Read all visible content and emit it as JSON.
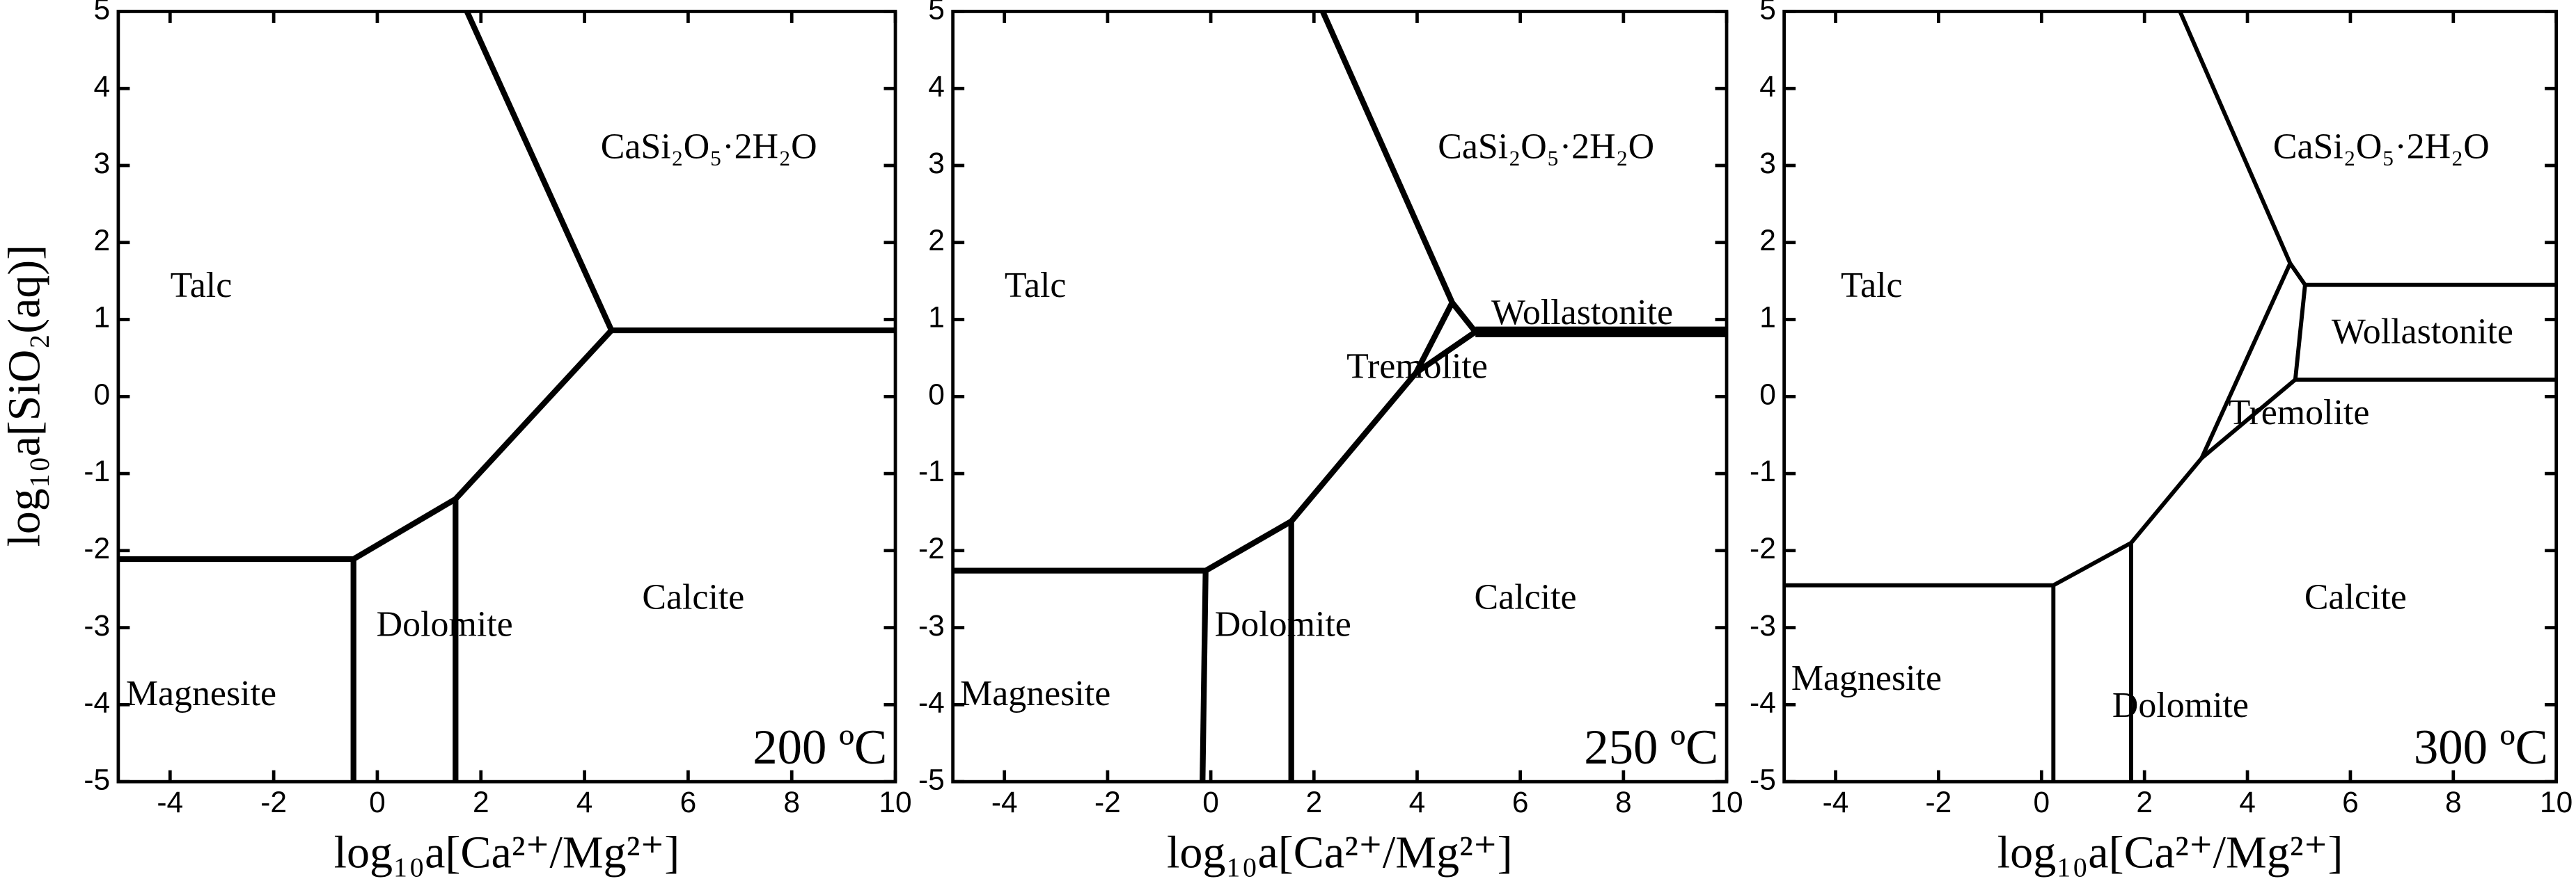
{
  "chart_data": [
    {
      "type": "line",
      "xlabel": "log₁₀a[Ca²⁺/Mg²⁺]",
      "ylabel": "log₁₀a[SiO₂(aq)]",
      "corner_label": "200 ºC",
      "xlim": [
        -5,
        10
      ],
      "ylim": [
        -5,
        5
      ],
      "xticks": [
        -4,
        -2,
        0,
        2,
        4,
        6,
        8,
        10
      ],
      "yticks": [
        -5,
        -4,
        -3,
        -2,
        -1,
        0,
        1,
        2,
        3,
        4,
        5
      ],
      "color": "#000000",
      "linewidth": 3.5,
      "annotations": [
        "Talc",
        "CaSi₂O₅·2H₂O",
        "Dolomite",
        "Calcite",
        "Magnesite"
      ],
      "boundaries": [
        {
          "x": [
            1.73,
            4.52,
            10
          ],
          "y": [
            5,
            0.86,
            0.86
          ]
        },
        {
          "x": [
            4.52,
            1.51,
            -0.46,
            -5
          ],
          "y": [
            0.86,
            -1.33,
            -2.11,
            -2.11
          ]
        },
        {
          "x": [
            -0.46,
            -0.46
          ],
          "y": [
            -2.11,
            -5
          ]
        },
        {
          "x": [
            1.51,
            1.51
          ],
          "y": [
            -1.33,
            -5
          ]
        }
      ]
    },
    {
      "type": "line",
      "xlabel": "log₁₀a[Ca²⁺/Mg²⁺]",
      "corner_label": "250 ºC",
      "xlim": [
        -5,
        10
      ],
      "ylim": [
        -5,
        5
      ],
      "xticks": [
        -4,
        -2,
        0,
        2,
        4,
        6,
        8,
        10
      ],
      "yticks": [
        -5,
        -4,
        -3,
        -2,
        -1,
        0,
        1,
        2,
        3,
        4,
        5
      ],
      "color": "#000000",
      "linewidth": 3.5,
      "annotations": [
        "Talc",
        "CaSi₂O₅·2H₂O",
        "Wollastonite",
        "Tremolite",
        "Dolomite",
        "Calcite",
        "Magnesite"
      ],
      "boundaries": [
        {
          "x": [
            2.17,
            4.68,
            5.13
          ],
          "y": [
            5,
            1.22,
            0.84
          ]
        },
        {
          "x": [
            5.13,
            10
          ],
          "y": [
            0.84,
            0.84
          ],
          "linewidth": 6.5
        },
        {
          "x": [
            4.68,
            3.98,
            1.56,
            -0.1,
            -5
          ],
          "y": [
            1.22,
            0.31,
            -1.62,
            -2.26,
            -2.26
          ]
        },
        {
          "x": [
            3.98,
            5.13
          ],
          "y": [
            0.31,
            0.84
          ]
        },
        {
          "x": [
            -0.1,
            -0.16
          ],
          "y": [
            -2.26,
            -5
          ]
        },
        {
          "x": [
            1.56,
            1.56
          ],
          "y": [
            -1.62,
            -5
          ]
        }
      ]
    },
    {
      "type": "line",
      "xlabel": "log₁₀a[Ca²⁺/Mg²⁺]",
      "corner_label": "300 ºC",
      "xlim": [
        -5,
        10
      ],
      "ylim": [
        -5,
        5
      ],
      "xticks": [
        -4,
        -2,
        0,
        2,
        4,
        6,
        8,
        10
      ],
      "yticks": [
        -5,
        -4,
        -3,
        -2,
        -1,
        0,
        1,
        2,
        3,
        4,
        5
      ],
      "color": "#000000",
      "linewidth": 2.5,
      "annotations": [
        "Talc",
        "CaSi₂O₅·2H₂O",
        "Wollastonite",
        "Tremolite",
        "Dolomite",
        "Calcite",
        "Magnesite"
      ],
      "boundaries": [
        {
          "x": [
            2.69,
            4.83,
            5.12,
            10
          ],
          "y": [
            5,
            1.73,
            1.45,
            1.45
          ]
        },
        {
          "x": [
            5.12,
            4.93,
            10
          ],
          "y": [
            1.45,
            0.22,
            0.22
          ]
        },
        {
          "x": [
            4.83,
            3.11,
            1.74,
            0.23,
            -5
          ],
          "y": [
            1.73,
            -0.8,
            -1.9,
            -2.45,
            -2.45
          ]
        },
        {
          "x": [
            3.11,
            4.93
          ],
          "y": [
            -0.8,
            0.22
          ]
        },
        {
          "x": [
            0.23,
            0.23
          ],
          "y": [
            -2.45,
            -5
          ]
        },
        {
          "x": [
            1.74,
            1.74
          ],
          "y": [
            -1.9,
            -5
          ]
        }
      ]
    }
  ]
}
